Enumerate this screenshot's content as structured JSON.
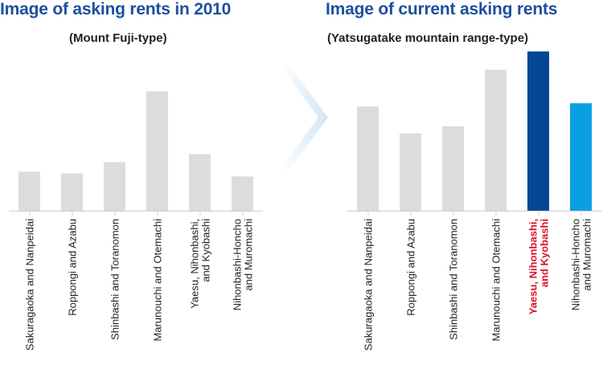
{
  "panels": {
    "left": {
      "title": "Image of asking rents in 2010",
      "subtitle": "(Mount Fuji-type)"
    },
    "right": {
      "title": "Image of current asking rents",
      "subtitle": "(Yatsugatake mountain range-type)"
    }
  },
  "chart_data": [
    {
      "type": "bar",
      "title": "Image of asking rents in 2010",
      "subtitle": "(Mount Fuji-type)",
      "categories": [
        [
          "Sakuragaoka and Nanpeidai"
        ],
        [
          "Roppongi and Azabu"
        ],
        [
          "Shinbashi and Toranomon"
        ],
        [
          "Marunouchi and Otemachi"
        ],
        [
          "Yaesu, Nihonbashi,",
          "and Kyobashi"
        ],
        [
          "Nihonbashi-Honcho",
          "and Muromachi"
        ]
      ],
      "values": [
        49,
        47,
        61,
        150,
        71,
        43
      ],
      "ylim": [
        0,
        200
      ],
      "colors": [
        "#dcdcdc",
        "#dcdcdc",
        "#dcdcdc",
        "#dcdcdc",
        "#dcdcdc",
        "#dcdcdc"
      ],
      "label_colors": [
        "#222222",
        "#222222",
        "#222222",
        "#222222",
        "#222222",
        "#222222"
      ],
      "grid": false
    },
    {
      "type": "bar",
      "title": "Image of current asking rents",
      "subtitle": "(Yatsugatake mountain range-type)",
      "categories": [
        [
          "Sakuragaoka and Nanpeidai"
        ],
        [
          "Roppongi and Azabu"
        ],
        [
          "Shinbashi and Toranomon"
        ],
        [
          "Marunouchi and Otemachi"
        ],
        [
          "Yaesu, Nihonbashi,",
          "and Kyobashi"
        ],
        [
          "Nihonbashi-Honcho",
          "and Muromachi"
        ]
      ],
      "values": [
        131,
        97,
        106,
        177,
        200,
        135
      ],
      "ylim": [
        0,
        200
      ],
      "colors": [
        "#dcdcdc",
        "#dcdcdc",
        "#dcdcdc",
        "#dcdcdc",
        "#034694",
        "#0a9fe3"
      ],
      "label_colors": [
        "#222222",
        "#222222",
        "#222222",
        "#222222",
        "#d9142b",
        "#222222"
      ],
      "highlight_index": 4,
      "grid": false
    }
  ]
}
